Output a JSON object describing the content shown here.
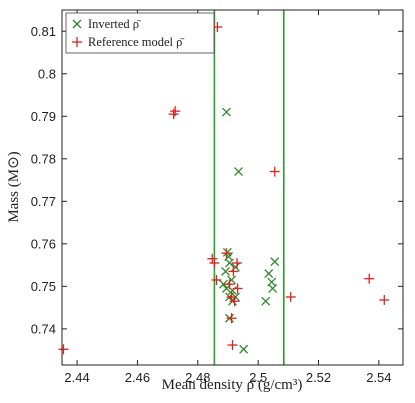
{
  "chart_data": {
    "type": "scatter",
    "title": "",
    "xlabel": "Mean density ρ̄ (g/cm³)",
    "ylabel": "Mass (M⊙)",
    "xlim": [
      2.435,
      2.548
    ],
    "ylim": [
      0.7315,
      0.815
    ],
    "xticks": [
      2.44,
      2.46,
      2.48,
      2.5,
      2.52,
      2.54
    ],
    "xtick_labels": [
      "2.44",
      "2.46",
      "2.48",
      "2.5",
      "2.52",
      "2.54"
    ],
    "yticks": [
      0.74,
      0.75,
      0.76,
      0.77,
      0.78,
      0.79,
      0.8,
      0.81
    ],
    "ytick_labels": [
      "0.74",
      "0.75",
      "0.76",
      "0.77",
      "0.78",
      "0.79",
      "0.8",
      "0.81"
    ],
    "grid": false,
    "legend_position": "top-left",
    "vertical_lines": [
      {
        "x": 2.4855,
        "color": "#2ca02c"
      },
      {
        "x": 2.5085,
        "color": "#2ca02c"
      }
    ],
    "series": [
      {
        "name": "Inverted ρ̄",
        "marker": "x",
        "color": "#2a8a2a",
        "points": [
          {
            "x": 2.4895,
            "y": 0.791
          },
          {
            "x": 2.4935,
            "y": 0.777
          },
          {
            "x": 2.4898,
            "y": 0.758
          },
          {
            "x": 2.4902,
            "y": 0.757
          },
          {
            "x": 2.4905,
            "y": 0.7555
          },
          {
            "x": 2.4925,
            "y": 0.7545
          },
          {
            "x": 2.4892,
            "y": 0.7535
          },
          {
            "x": 2.4912,
            "y": 0.7515
          },
          {
            "x": 2.4885,
            "y": 0.7505
          },
          {
            "x": 2.4895,
            "y": 0.7495
          },
          {
            "x": 2.4915,
            "y": 0.749
          },
          {
            "x": 2.4905,
            "y": 0.7475
          },
          {
            "x": 2.4915,
            "y": 0.7465
          },
          {
            "x": 2.4925,
            "y": 0.7475
          },
          {
            "x": 2.4905,
            "y": 0.7425
          },
          {
            "x": 2.4952,
            "y": 0.7352
          },
          {
            "x": 2.5025,
            "y": 0.7465
          },
          {
            "x": 2.5035,
            "y": 0.753
          },
          {
            "x": 2.5045,
            "y": 0.751
          },
          {
            "x": 2.5048,
            "y": 0.7495
          },
          {
            "x": 2.5055,
            "y": 0.7558
          }
        ]
      },
      {
        "name": "Reference model ρ̄",
        "marker": "+",
        "color": "#dd2222",
        "points": [
          {
            "x": 2.4865,
            "y": 0.811
          },
          {
            "x": 2.4725,
            "y": 0.7912
          },
          {
            "x": 2.472,
            "y": 0.7905
          },
          {
            "x": 2.5055,
            "y": 0.777
          },
          {
            "x": 2.4895,
            "y": 0.7578
          },
          {
            "x": 2.4848,
            "y": 0.7565
          },
          {
            "x": 2.4855,
            "y": 0.7555
          },
          {
            "x": 2.493,
            "y": 0.7555
          },
          {
            "x": 2.4918,
            "y": 0.7535
          },
          {
            "x": 2.4862,
            "y": 0.7515
          },
          {
            "x": 2.4905,
            "y": 0.7505
          },
          {
            "x": 2.4932,
            "y": 0.7495
          },
          {
            "x": 2.4912,
            "y": 0.7475
          },
          {
            "x": 2.4922,
            "y": 0.7465
          },
          {
            "x": 2.4912,
            "y": 0.7425
          },
          {
            "x": 2.4915,
            "y": 0.7362
          },
          {
            "x": 2.5108,
            "y": 0.7475
          },
          {
            "x": 2.5368,
            "y": 0.7518
          },
          {
            "x": 2.5418,
            "y": 0.7468
          },
          {
            "x": 2.4355,
            "y": 0.7352
          }
        ]
      }
    ]
  }
}
